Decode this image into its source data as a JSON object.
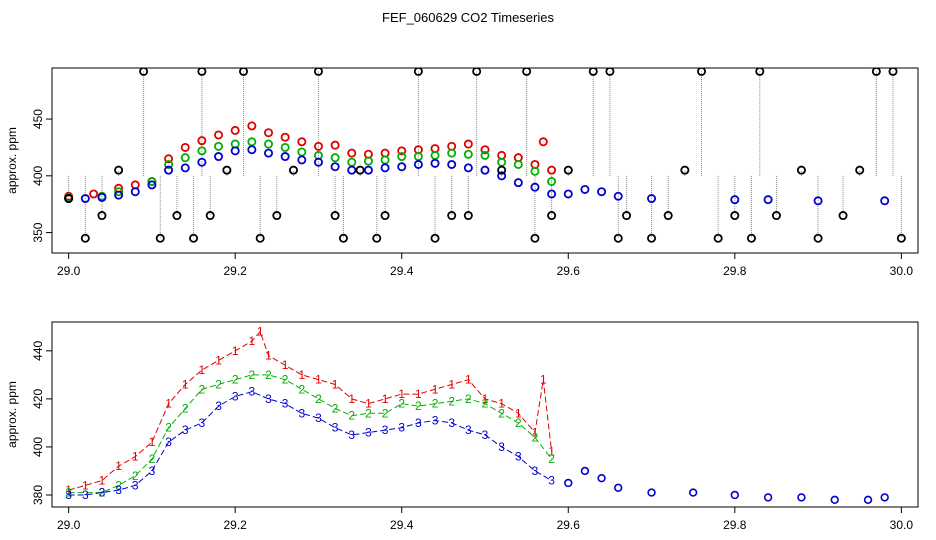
{
  "title": "FEF_060629  CO2 Timeseries",
  "colors": {
    "series1": "#e00000",
    "series2": "#00b000",
    "series3": "#0000d0",
    "ref": "#000000",
    "cyan": "#30d8d8",
    "trace": "#888888"
  },
  "chart_data": [
    {
      "type": "scatter",
      "ylabel": "approx. ppm",
      "xlim": [
        28.98,
        30.02
      ],
      "ylim": [
        332,
        495
      ],
      "x_ticks": [
        "29.0",
        "29.2",
        "29.4",
        "29.6",
        "29.8",
        "30.0"
      ],
      "y_ticks": [
        "350",
        "400",
        "450"
      ],
      "grid": false,
      "series": [
        {
          "values": [
            [
              29.0,
              380
            ],
            [
              29.02,
              380
            ],
            [
              29.04,
              381
            ],
            [
              29.06,
              383
            ],
            [
              29.08,
              386
            ],
            [
              29.1,
              392
            ],
            [
              29.12,
              405
            ],
            [
              29.14,
              407
            ],
            [
              29.16,
              412
            ],
            [
              29.18,
              417
            ],
            [
              29.2,
              422
            ],
            [
              29.22,
              423
            ],
            [
              29.24,
              420
            ],
            [
              29.26,
              417
            ],
            [
              29.28,
              414
            ],
            [
              29.3,
              412
            ],
            [
              29.32,
              408
            ],
            [
              29.34,
              405
            ],
            [
              29.36,
              405
            ],
            [
              29.38,
              407
            ],
            [
              29.4,
              408
            ],
            [
              29.42,
              410
            ],
            [
              29.44,
              411
            ],
            [
              29.46,
              410
            ],
            [
              29.48,
              407
            ],
            [
              29.5,
              405
            ],
            [
              29.52,
              400
            ],
            [
              29.54,
              394
            ],
            [
              29.56,
              390
            ],
            [
              29.58,
              384
            ],
            [
              29.6,
              384
            ],
            [
              29.62,
              388
            ],
            [
              29.64,
              386
            ],
            [
              29.66,
              382
            ],
            [
              29.7,
              380
            ],
            [
              29.8,
              379
            ],
            [
              29.84,
              379
            ],
            [
              29.9,
              378
            ],
            [
              29.98,
              378
            ]
          ]
        },
        {
          "values": [
            [
              29.0,
              381
            ],
            [
              29.04,
              382
            ],
            [
              29.06,
              386
            ],
            [
              29.1,
              395
            ],
            [
              29.12,
              410
            ],
            [
              29.14,
              416
            ],
            [
              29.16,
              422
            ],
            [
              29.18,
              426
            ],
            [
              29.2,
              428
            ],
            [
              29.22,
              430
            ],
            [
              29.24,
              428
            ],
            [
              29.26,
              425
            ],
            [
              29.28,
              421
            ],
            [
              29.3,
              418
            ],
            [
              29.32,
              416
            ],
            [
              29.34,
              412
            ],
            [
              29.36,
              413
            ],
            [
              29.38,
              414
            ],
            [
              29.4,
              417
            ],
            [
              29.42,
              417
            ],
            [
              29.44,
              418
            ],
            [
              29.46,
              420
            ],
            [
              29.48,
              419
            ],
            [
              29.5,
              418
            ],
            [
              29.52,
              412
            ],
            [
              29.54,
              410
            ],
            [
              29.56,
              404
            ],
            [
              29.58,
              395
            ]
          ]
        },
        {
          "values": [
            [
              29.0,
              382
            ],
            [
              29.03,
              384
            ],
            [
              29.06,
              389
            ],
            [
              29.08,
              392
            ],
            [
              29.1,
              395
            ],
            [
              29.12,
              415
            ],
            [
              29.14,
              425
            ],
            [
              29.16,
              431
            ],
            [
              29.18,
              436
            ],
            [
              29.2,
              440
            ],
            [
              29.22,
              444
            ],
            [
              29.24,
              438
            ],
            [
              29.26,
              434
            ],
            [
              29.28,
              430
            ],
            [
              29.3,
              426
            ],
            [
              29.32,
              427
            ],
            [
              29.34,
              420
            ],
            [
              29.36,
              419
            ],
            [
              29.38,
              420
            ],
            [
              29.4,
              422
            ],
            [
              29.42,
              423
            ],
            [
              29.44,
              424
            ],
            [
              29.46,
              426
            ],
            [
              29.48,
              428
            ],
            [
              29.5,
              423
            ],
            [
              29.52,
              418
            ],
            [
              29.54,
              416
            ],
            [
              29.56,
              410
            ],
            [
              29.57,
              430
            ],
            [
              29.58,
              405
            ]
          ]
        },
        {
          "values": [
            [
              29.0,
              380
            ],
            [
              29.02,
              345
            ],
            [
              29.04,
              365
            ],
            [
              29.06,
              405
            ],
            [
              29.09,
              492
            ],
            [
              29.11,
              345
            ],
            [
              29.13,
              365
            ],
            [
              29.15,
              345
            ],
            [
              29.16,
              492
            ],
            [
              29.17,
              365
            ],
            [
              29.19,
              405
            ],
            [
              29.21,
              492
            ],
            [
              29.23,
              345
            ],
            [
              29.25,
              365
            ],
            [
              29.27,
              405
            ],
            [
              29.3,
              492
            ],
            [
              29.32,
              365
            ],
            [
              29.33,
              345
            ],
            [
              29.35,
              405
            ],
            [
              29.37,
              345
            ],
            [
              29.38,
              365
            ],
            [
              29.42,
              492
            ],
            [
              29.44,
              345
            ],
            [
              29.46,
              365
            ],
            [
              29.48,
              365
            ],
            [
              29.49,
              492
            ],
            [
              29.52,
              405
            ],
            [
              29.55,
              492
            ],
            [
              29.56,
              345
            ],
            [
              29.58,
              365
            ],
            [
              29.6,
              405
            ],
            [
              29.63,
              492
            ],
            [
              29.65,
              492
            ],
            [
              29.66,
              345
            ],
            [
              29.67,
              365
            ],
            [
              29.7,
              345
            ],
            [
              29.72,
              365
            ],
            [
              29.74,
              405
            ],
            [
              29.76,
              492
            ],
            [
              29.78,
              345
            ],
            [
              29.8,
              365
            ],
            [
              29.82,
              345
            ],
            [
              29.83,
              492
            ],
            [
              29.85,
              365
            ],
            [
              29.88,
              405
            ],
            [
              29.9,
              345
            ],
            [
              29.93,
              365
            ],
            [
              29.95,
              405
            ],
            [
              29.97,
              492
            ],
            [
              29.99,
              492
            ],
            [
              30.0,
              345
            ]
          ]
        }
      ]
    },
    {
      "type": "scatter",
      "ylabel": "approx. ppm",
      "xlim": [
        28.98,
        30.02
      ],
      "ylim": [
        375,
        452
      ],
      "x_ticks": [
        "29.0",
        "29.2",
        "29.4",
        "29.6",
        "29.8",
        "30.0"
      ],
      "y_ticks": [
        "380",
        "400",
        "420",
        "440"
      ],
      "grid": false,
      "series": [
        {
          "mark": "1",
          "values": [
            [
              29.0,
              382
            ],
            [
              29.02,
              384
            ],
            [
              29.04,
              386
            ],
            [
              29.06,
              392
            ],
            [
              29.08,
              396
            ],
            [
              29.1,
              402
            ],
            [
              29.12,
              418
            ],
            [
              29.14,
              426
            ],
            [
              29.16,
              432
            ],
            [
              29.18,
              436
            ],
            [
              29.2,
              440
            ],
            [
              29.22,
              444
            ],
            [
              29.23,
              448
            ],
            [
              29.24,
              438
            ],
            [
              29.26,
              434
            ],
            [
              29.28,
              430
            ],
            [
              29.3,
              428
            ],
            [
              29.32,
              426
            ],
            [
              29.34,
              420
            ],
            [
              29.36,
              418
            ],
            [
              29.38,
              420
            ],
            [
              29.4,
              422
            ],
            [
              29.42,
              422
            ],
            [
              29.44,
              424
            ],
            [
              29.46,
              426
            ],
            [
              29.48,
              428
            ],
            [
              29.5,
              420
            ],
            [
              29.52,
              418
            ],
            [
              29.54,
              414
            ],
            [
              29.56,
              406
            ],
            [
              29.57,
              428
            ],
            [
              29.58,
              398
            ]
          ]
        },
        {
          "mark": "2",
          "values": [
            [
              29.0,
              381
            ],
            [
              29.04,
              381
            ],
            [
              29.06,
              384
            ],
            [
              29.08,
              388
            ],
            [
              29.1,
              395
            ],
            [
              29.12,
              408
            ],
            [
              29.14,
              416
            ],
            [
              29.16,
              424
            ],
            [
              29.18,
              426
            ],
            [
              29.2,
              428
            ],
            [
              29.22,
              430
            ],
            [
              29.24,
              430
            ],
            [
              29.26,
              428
            ],
            [
              29.28,
              424
            ],
            [
              29.3,
              420
            ],
            [
              29.32,
              416
            ],
            [
              29.34,
              413
            ],
            [
              29.36,
              414
            ],
            [
              29.38,
              414
            ],
            [
              29.4,
              418
            ],
            [
              29.42,
              417
            ],
            [
              29.44,
              418
            ],
            [
              29.46,
              419
            ],
            [
              29.48,
              420
            ],
            [
              29.5,
              418
            ],
            [
              29.52,
              414
            ],
            [
              29.54,
              410
            ],
            [
              29.56,
              404
            ],
            [
              29.58,
              395
            ]
          ]
        },
        {
          "mark": "3",
          "values": [
            [
              29.0,
              380
            ],
            [
              29.02,
              380
            ],
            [
              29.04,
              381
            ],
            [
              29.06,
              382
            ],
            [
              29.08,
              384
            ],
            [
              29.1,
              390
            ],
            [
              29.12,
              402
            ],
            [
              29.14,
              407
            ],
            [
              29.16,
              410
            ],
            [
              29.18,
              417
            ],
            [
              29.2,
              421
            ],
            [
              29.22,
              423
            ],
            [
              29.24,
              420
            ],
            [
              29.26,
              418
            ],
            [
              29.28,
              414
            ],
            [
              29.3,
              412
            ],
            [
              29.32,
              408
            ],
            [
              29.34,
              405
            ],
            [
              29.36,
              406
            ],
            [
              29.38,
              407
            ],
            [
              29.4,
              408
            ],
            [
              29.42,
              410
            ],
            [
              29.44,
              411
            ],
            [
              29.46,
              410
            ],
            [
              29.48,
              407
            ],
            [
              29.5,
              405
            ],
            [
              29.52,
              400
            ],
            [
              29.54,
              396
            ],
            [
              29.56,
              390
            ],
            [
              29.58,
              386
            ]
          ]
        },
        {
          "mark": "o",
          "values": [
            [
              29.6,
              385
            ],
            [
              29.62,
              390
            ],
            [
              29.64,
              387
            ],
            [
              29.66,
              383
            ],
            [
              29.7,
              381
            ],
            [
              29.75,
              381
            ],
            [
              29.8,
              380
            ],
            [
              29.84,
              379
            ],
            [
              29.88,
              379
            ],
            [
              29.92,
              378
            ],
            [
              29.96,
              378
            ],
            [
              29.98,
              379
            ]
          ]
        }
      ]
    }
  ]
}
